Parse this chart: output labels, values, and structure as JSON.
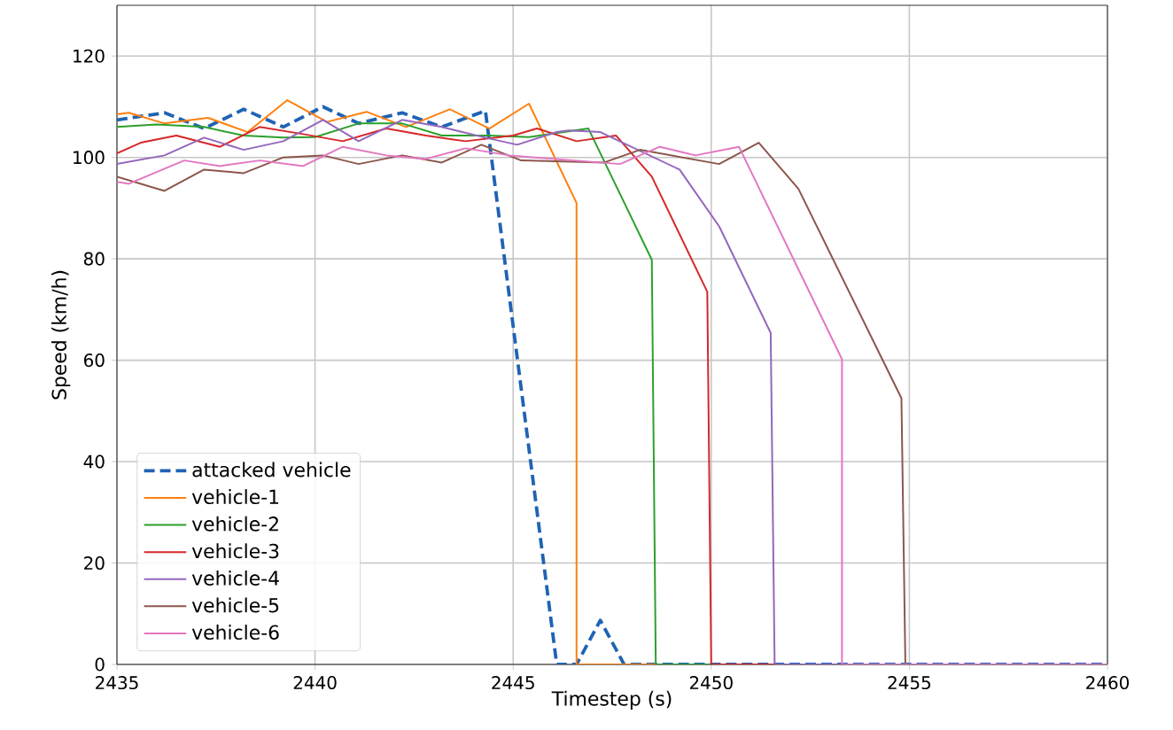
{
  "chart_data": {
    "type": "line",
    "xlabel": "Timestep (s)",
    "ylabel": "Speed (km/h)",
    "xlim": [
      2435,
      2460
    ],
    "ylim": [
      0,
      130
    ],
    "xticks": [
      2435,
      2440,
      2445,
      2450,
      2455,
      2460
    ],
    "yticks": [
      0,
      20,
      40,
      60,
      80,
      100,
      120
    ],
    "grid": true,
    "legend": "bottom left",
    "marker": "none",
    "series": [
      {
        "name": "attacked vehicle",
        "color": "#1f63b4",
        "line_style": "dashed",
        "x": [
          2435,
          2436.2,
          2437.2,
          2438.2,
          2439.2,
          2440.2,
          2441.1,
          2442.2,
          2443.2,
          2444.3,
          2446.1,
          2446.6,
          2447.2,
          2447.8,
          2460
        ],
        "values": [
          107.4,
          108.8,
          105.7,
          109.5,
          106,
          110,
          106.7,
          108.8,
          106,
          109.2,
          0,
          0,
          8.7,
          0,
          0
        ]
      },
      {
        "name": "vehicle-1",
        "color": "#ff7f0e",
        "x": [
          2435,
          2435.3,
          2436.2,
          2437.3,
          2438.3,
          2439.3,
          2440.3,
          2441.3,
          2442.3,
          2443.4,
          2444.4,
          2445.4,
          2446.6,
          2446.6,
          2460
        ],
        "values": [
          108.5,
          108.8,
          106.7,
          107.8,
          105,
          111.3,
          107,
          109,
          106,
          109.5,
          105.7,
          110.6,
          91,
          0,
          0
        ]
      },
      {
        "name": "vehicle-2",
        "color": "#2ca02c",
        "x": [
          2435,
          2436,
          2437.2,
          2438.2,
          2439.2,
          2440,
          2441.1,
          2442.2,
          2443.2,
          2444.4,
          2445.4,
          2446.9,
          2448.5,
          2448.6,
          2460
        ],
        "values": [
          106,
          106.5,
          106,
          104.3,
          103.9,
          104,
          106.7,
          106.7,
          104.3,
          104.3,
          104,
          105.7,
          79.8,
          0,
          0
        ]
      },
      {
        "name": "vehicle-3",
        "color": "#d62728",
        "x": [
          2435,
          2435.6,
          2436.5,
          2437.6,
          2438.6,
          2439.7,
          2440.7,
          2441.8,
          2442.8,
          2443.8,
          2445,
          2445.6,
          2446.6,
          2447.6,
          2448.5,
          2449.9,
          2450,
          2460
        ],
        "values": [
          100.8,
          102.9,
          104.3,
          102.1,
          106,
          104.6,
          103.2,
          105.7,
          104.3,
          103.2,
          104.3,
          105.7,
          103.2,
          104.3,
          96.2,
          73.5,
          0,
          0
        ]
      },
      {
        "name": "vehicle-4",
        "color": "#9467bd",
        "x": [
          2435,
          2436.2,
          2437.2,
          2438.2,
          2439.2,
          2440.2,
          2441.1,
          2442.2,
          2443.2,
          2444.3,
          2445.1,
          2446.1,
          2446.4,
          2447.2,
          2449.2,
          2450.2,
          2451.5,
          2451.6,
          2460
        ],
        "values": [
          98.7,
          100.4,
          103.9,
          101.5,
          103.2,
          107.4,
          103.2,
          107.4,
          106,
          103.9,
          102.5,
          105,
          105.3,
          105,
          97.6,
          86.4,
          65.4,
          0,
          0
        ]
      },
      {
        "name": "vehicle-5",
        "color": "#8c564b",
        "x": [
          2435,
          2436.2,
          2437.2,
          2438.2,
          2439.2,
          2440.2,
          2441.1,
          2442.2,
          2443.2,
          2444.2,
          2445.2,
          2447.3,
          2448.2,
          2450.2,
          2451.2,
          2452.2,
          2454.8,
          2454.9,
          2460
        ],
        "values": [
          96.2,
          93.4,
          97.6,
          96.9,
          100,
          100.4,
          98.7,
          100.4,
          99,
          102.5,
          99.4,
          99,
          101.5,
          98.7,
          102.9,
          93.8,
          52.5,
          0,
          0
        ]
      },
      {
        "name": "vehicle-6",
        "color": "#e377c2",
        "x": [
          2435,
          2435.3,
          2436.7,
          2437.6,
          2438.6,
          2439.7,
          2440.7,
          2441.8,
          2442.8,
          2443.8,
          2444.9,
          2447.7,
          2448.7,
          2449.6,
          2450.7,
          2453.3,
          2453.3,
          2460
        ],
        "values": [
          95.2,
          94.8,
          99.4,
          98.3,
          99.4,
          98.3,
          102.1,
          100.4,
          99.7,
          101.8,
          100.4,
          98.7,
          102.1,
          100.4,
          102.1,
          60.2,
          0,
          0
        ]
      }
    ]
  }
}
